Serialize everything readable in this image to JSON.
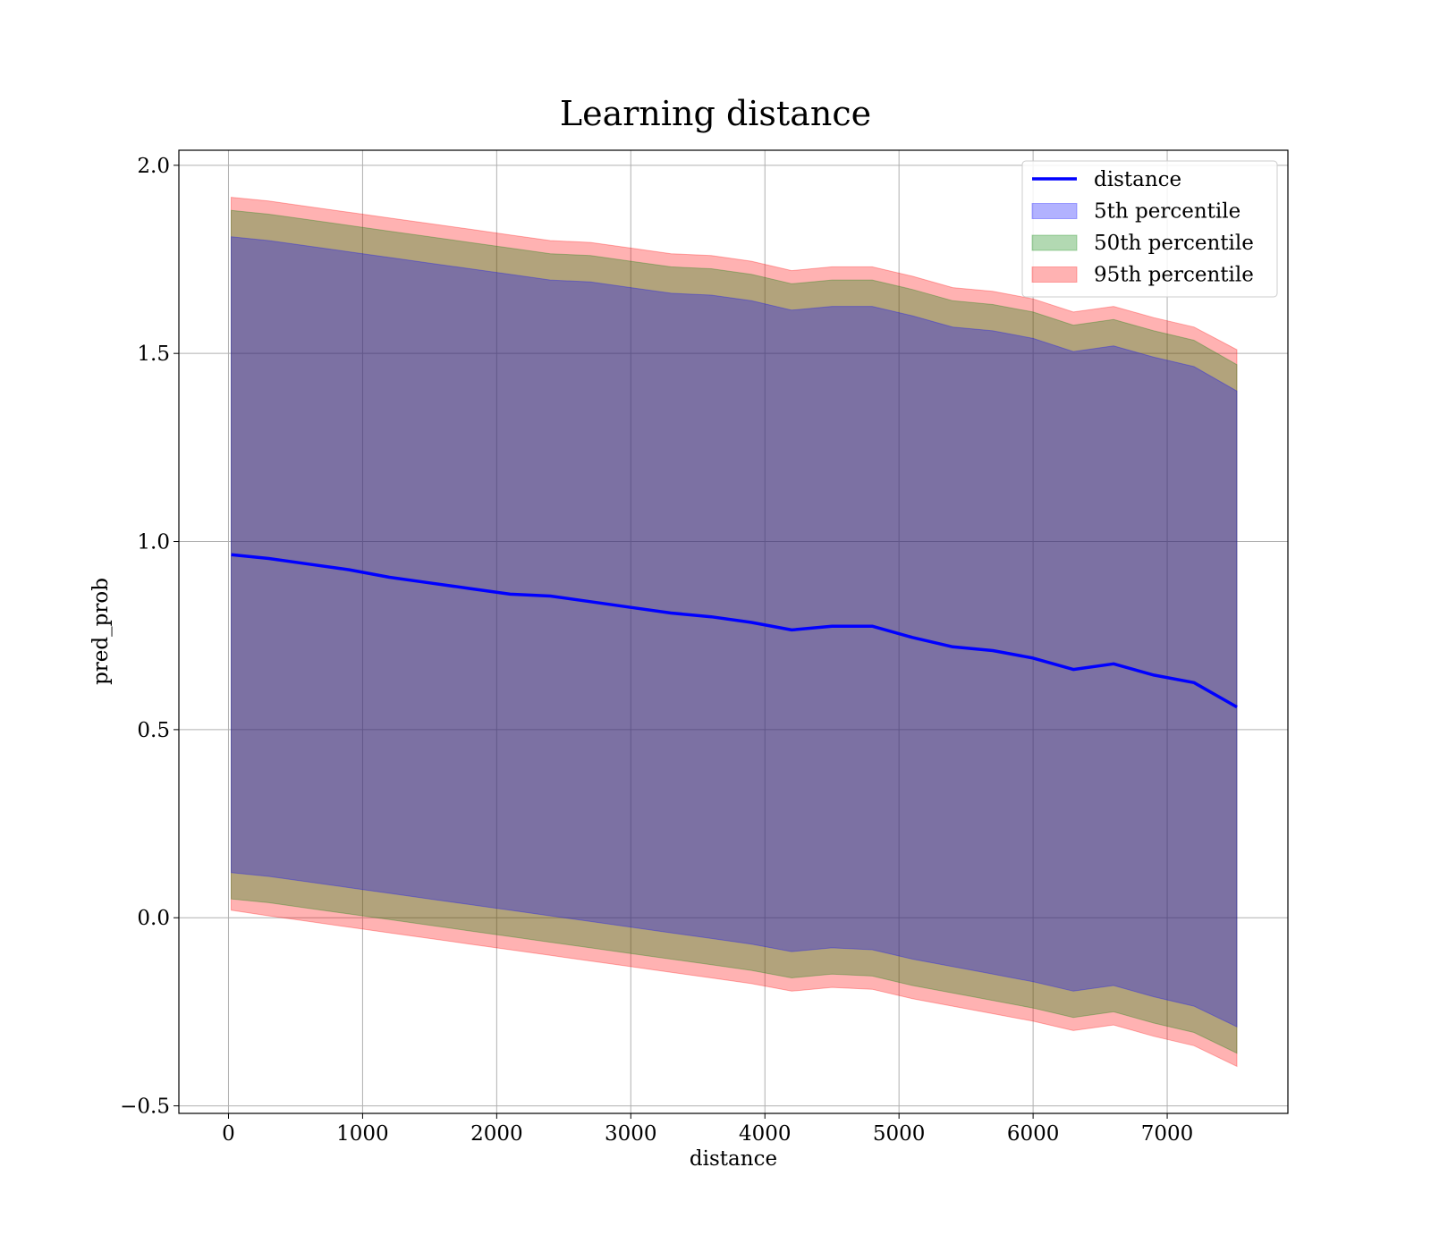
{
  "chart_data": {
    "type": "area",
    "title": "Learning distance",
    "xlabel": "distance",
    "ylabel": "pred_prob",
    "xlim": [
      -370,
      7900
    ],
    "ylim": [
      -0.52,
      2.04
    ],
    "xticks": [
      0,
      1000,
      2000,
      3000,
      4000,
      5000,
      6000,
      7000
    ],
    "xtick_labels": [
      "0",
      "1000",
      "2000",
      "3000",
      "4000",
      "5000",
      "6000",
      "7000"
    ],
    "yticks": [
      -0.5,
      0.0,
      0.5,
      1.0,
      1.5,
      2.0
    ],
    "ytick_labels": [
      "−0.5",
      "0.0",
      "0.5",
      "1.0",
      "1.5",
      "2.0"
    ],
    "grid": true,
    "legend_position": "top-right",
    "x": [
      20,
      300,
      600,
      900,
      1200,
      1500,
      1800,
      2100,
      2400,
      2700,
      3000,
      3300,
      3600,
      3900,
      4200,
      4500,
      4800,
      5100,
      5400,
      5700,
      6000,
      6300,
      6600,
      6900,
      7200,
      7520
    ],
    "series": [
      {
        "name": "distance",
        "kind": "line",
        "color": "#0000ff",
        "values": [
          0.965,
          0.955,
          0.94,
          0.925,
          0.905,
          0.89,
          0.875,
          0.86,
          0.855,
          0.84,
          0.825,
          0.81,
          0.8,
          0.785,
          0.765,
          0.775,
          0.775,
          0.745,
          0.72,
          0.71,
          0.69,
          0.66,
          0.675,
          0.645,
          0.625,
          0.56
        ]
      },
      {
        "name": "5th percentile",
        "kind": "band",
        "color": "#0000ff",
        "lower": [
          0.12,
          0.11,
          0.095,
          0.08,
          0.065,
          0.05,
          0.035,
          0.02,
          0.005,
          -0.01,
          -0.025,
          -0.04,
          -0.055,
          -0.07,
          -0.09,
          -0.08,
          -0.085,
          -0.11,
          -0.13,
          -0.15,
          -0.17,
          -0.195,
          -0.18,
          -0.21,
          -0.235,
          -0.29
        ],
        "upper": [
          1.81,
          1.8,
          1.785,
          1.77,
          1.755,
          1.74,
          1.725,
          1.71,
          1.695,
          1.69,
          1.675,
          1.66,
          1.655,
          1.64,
          1.615,
          1.625,
          1.625,
          1.6,
          1.57,
          1.56,
          1.54,
          1.505,
          1.52,
          1.49,
          1.465,
          1.4
        ]
      },
      {
        "name": "50th percentile",
        "kind": "band",
        "color": "#008000",
        "lower": [
          0.05,
          0.04,
          0.025,
          0.01,
          -0.005,
          -0.02,
          -0.035,
          -0.05,
          -0.065,
          -0.08,
          -0.095,
          -0.11,
          -0.125,
          -0.14,
          -0.16,
          -0.15,
          -0.155,
          -0.18,
          -0.2,
          -0.22,
          -0.24,
          -0.265,
          -0.25,
          -0.28,
          -0.305,
          -0.36
        ],
        "upper": [
          1.88,
          1.87,
          1.855,
          1.84,
          1.825,
          1.81,
          1.795,
          1.78,
          1.765,
          1.76,
          1.745,
          1.73,
          1.725,
          1.71,
          1.685,
          1.695,
          1.695,
          1.67,
          1.64,
          1.63,
          1.61,
          1.575,
          1.59,
          1.56,
          1.535,
          1.47
        ]
      },
      {
        "name": "95th percentile",
        "kind": "band",
        "color": "#ff0000",
        "lower": [
          0.02,
          0.005,
          -0.01,
          -0.025,
          -0.04,
          -0.055,
          -0.07,
          -0.085,
          -0.1,
          -0.115,
          -0.13,
          -0.145,
          -0.16,
          -0.175,
          -0.195,
          -0.185,
          -0.19,
          -0.215,
          -0.235,
          -0.255,
          -0.275,
          -0.3,
          -0.285,
          -0.315,
          -0.34,
          -0.395
        ],
        "upper": [
          1.915,
          1.905,
          1.89,
          1.875,
          1.86,
          1.845,
          1.83,
          1.815,
          1.8,
          1.795,
          1.78,
          1.765,
          1.76,
          1.745,
          1.72,
          1.73,
          1.73,
          1.705,
          1.675,
          1.665,
          1.645,
          1.61,
          1.625,
          1.595,
          1.57,
          1.51
        ]
      }
    ]
  }
}
